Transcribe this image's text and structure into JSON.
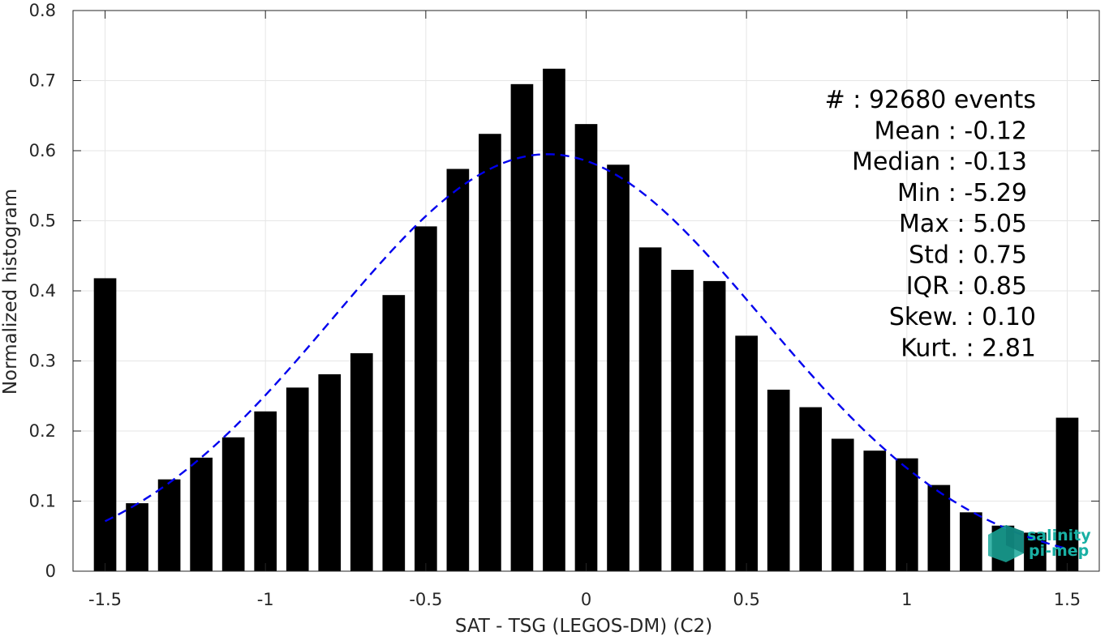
{
  "chart_data": {
    "type": "bar",
    "xlabel": "SAT - TSG (LEGOS-DM) (C2)",
    "ylabel": "Normalized histogram",
    "xlim": [
      -1.6,
      1.6
    ],
    "ylim": [
      0,
      0.8
    ],
    "xticks": [
      -1.5,
      -1,
      -0.5,
      0,
      0.5,
      1,
      1.5
    ],
    "xtick_labels": [
      "-1.5",
      "-1",
      "-0.5",
      "0",
      "0.5",
      "1",
      "1.5"
    ],
    "yticks": [
      0,
      0.1,
      0.2,
      0.3,
      0.4,
      0.5,
      0.6,
      0.7,
      0.8
    ],
    "ytick_labels": [
      "0",
      "0.1",
      "0.2",
      "0.3",
      "0.4",
      "0.5",
      "0.6",
      "0.7",
      "0.8"
    ],
    "grid": true,
    "bar_color": "#000000",
    "bar_width": 0.07,
    "x": [
      -1.5,
      -1.4,
      -1.3,
      -1.2,
      -1.1,
      -1.0,
      -0.9,
      -0.8,
      -0.7,
      -0.6,
      -0.5,
      -0.4,
      -0.3,
      -0.2,
      -0.1,
      0.0,
      0.1,
      0.2,
      0.3,
      0.4,
      0.5,
      0.6,
      0.7,
      0.8,
      0.9,
      1.0,
      1.1,
      1.2,
      1.3,
      1.4,
      1.5
    ],
    "values": [
      0.418,
      0.097,
      0.131,
      0.162,
      0.191,
      0.228,
      0.262,
      0.281,
      0.311,
      0.394,
      0.492,
      0.574,
      0.624,
      0.695,
      0.717,
      0.638,
      0.58,
      0.462,
      0.43,
      0.414,
      0.336,
      0.259,
      0.234,
      0.189,
      0.172,
      0.161,
      0.123,
      0.084,
      0.065,
      0.055,
      0.219
    ],
    "fit": {
      "type": "gaussian",
      "color": "#0000ee",
      "style": "dashed",
      "mean": -0.12,
      "std": 0.67,
      "peak": 0.595,
      "x_range": [
        -1.5,
        1.5
      ]
    },
    "annotation": {
      "lines": [
        "#  : 92680 events",
        "Mean : -0.12",
        "Median : -0.13",
        "Min : -5.29",
        "Max : 5.05",
        "Std : 0.75",
        "IQR : 0.85",
        "Skew. : 0.10",
        "Kurt. : 2.81"
      ]
    }
  },
  "logo": {
    "line1": "salinity",
    "line2": "pi-mep",
    "color": "#19b0a4"
  }
}
